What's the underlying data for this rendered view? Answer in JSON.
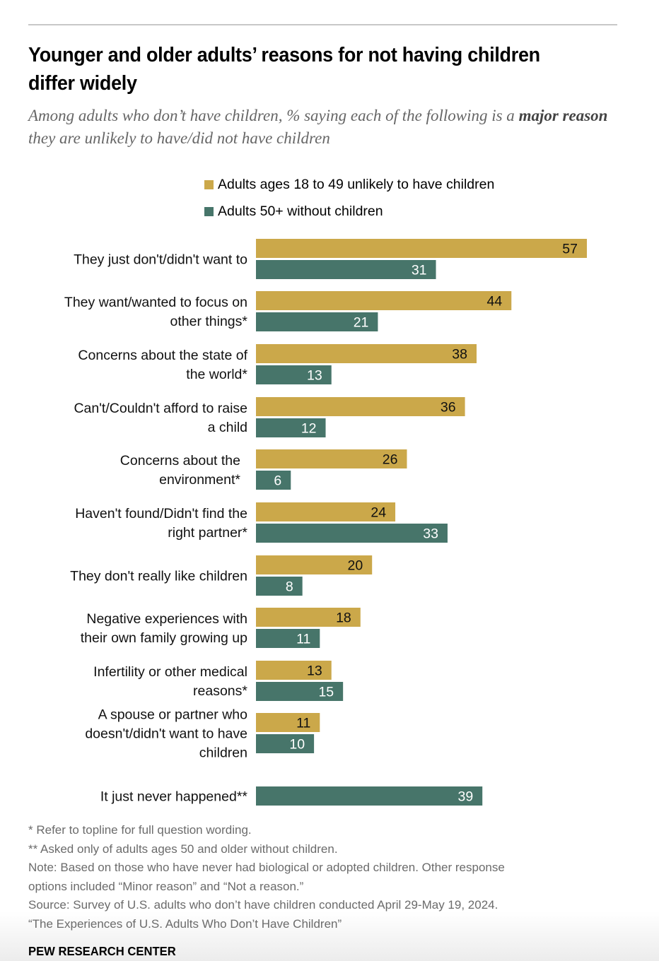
{
  "title": "Younger and older adults’ reasons for not having children differ widely",
  "subtitle_pre": "Among adults who don’t have children, % saying each of the following is a ",
  "subtitle_bold": "major reason",
  "subtitle_post": " they are unlikely to have/did not have children",
  "colors": {
    "younger": "#CBA84A",
    "older": "#47756A"
  },
  "chart_data": {
    "type": "bar",
    "orientation": "horizontal",
    "title": "Younger and older adults’ reasons for not having children differ widely",
    "xlabel": "",
    "ylabel": "",
    "xlim": [
      0,
      60
    ],
    "grid": false,
    "legend_position": "top",
    "categories": [
      [
        "They just don't/didn't want to"
      ],
      [
        "They want/wanted to focus on",
        "other things*"
      ],
      [
        "Concerns about the state of",
        "the world*"
      ],
      [
        "Can't/Couldn't afford to raise",
        "a child"
      ],
      [
        "Concerns about the",
        "environment*"
      ],
      [
        "Haven't found/Didn't find the",
        "right partner*"
      ],
      [
        "They don't really like children"
      ],
      [
        "Negative experiences with",
        "their own family growing up"
      ],
      [
        "Infertility or other medical",
        "reasons*"
      ],
      [
        "A spouse or partner who",
        "doesn't/didn't want to have",
        "children"
      ],
      [
        "It just never happened**"
      ]
    ],
    "series": [
      {
        "name": "Adults ages 18 to 49 unlikely to have children",
        "values": [
          57,
          44,
          38,
          36,
          26,
          24,
          20,
          18,
          13,
          11,
          null
        ]
      },
      {
        "name": "Adults 50+ without children",
        "values": [
          31,
          21,
          13,
          12,
          6,
          33,
          8,
          11,
          15,
          10,
          39
        ]
      }
    ]
  },
  "footer": {
    "lines": [
      "* Refer to topline for full question wording.",
      "** Asked only of adults ages 50 and older without children.",
      "Note: Based on those who have never had biological or adopted children. Other response",
      "options included “Minor reason” and “Not a reason.”",
      "Source: Survey of U.S. adults who don’t have children conducted April 29-May 19, 2024.",
      "“The Experiences of U.S. Adults Who Don’t Have Children”"
    ],
    "brand": "PEW RESEARCH CENTER"
  }
}
